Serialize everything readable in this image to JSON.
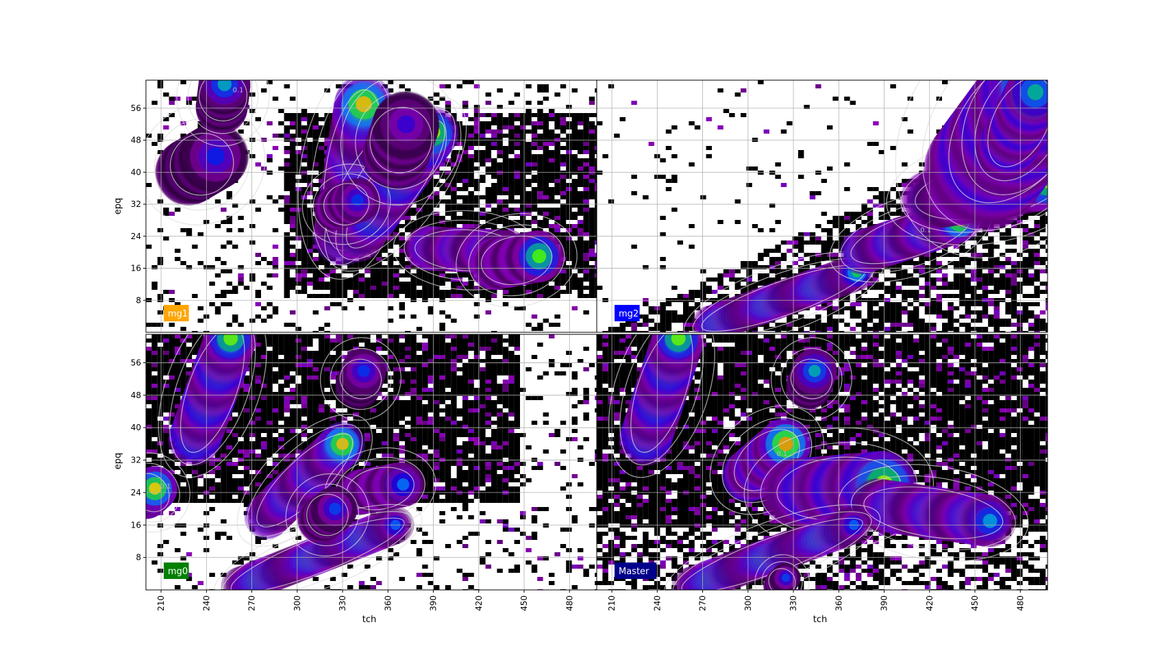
{
  "figure": {
    "xlabel": "tch",
    "ylabel": "epq"
  },
  "chart_data": [
    {
      "type": "heatmap",
      "panel_label": "mg1",
      "label_color": "#ffa500",
      "label_text_color": "#ffffff",
      "xlabel": "",
      "ylabel": "epq",
      "xlim": [
        200,
        498
      ],
      "ylim": [
        0,
        63
      ],
      "x_ticks": [
        210,
        240,
        270,
        300,
        330,
        360,
        390,
        420,
        450,
        480
      ],
      "y_ticks": [
        8,
        16,
        24,
        32,
        40,
        48,
        56
      ],
      "show_x_ticklabels": false,
      "show_y_ticklabels": true,
      "grid": true,
      "contour_label": "0.1",
      "ridges": [
        {
          "x": [
            228,
            246
          ],
          "y": [
            40,
            44
          ],
          "w": 4.5,
          "i": 0.5
        },
        {
          "x": [
            250,
            252
          ],
          "y": [
            56,
            62
          ],
          "w": 3.5,
          "i": 0.55
        },
        {
          "x": [
            330,
            344
          ],
          "y": [
            24,
            57
          ],
          "w": 4.0,
          "i": 0.9
        },
        {
          "x": [
            340,
            390
          ],
          "y": [
            24,
            50
          ],
          "w": 3.5,
          "i": 1.0
        },
        {
          "x": [
            325,
            340
          ],
          "y": [
            31,
            33
          ],
          "w": 3.0,
          "i": 0.7
        },
        {
          "x": [
            365,
            372
          ],
          "y": [
            44,
            52
          ],
          "w": 4.5,
          "i": 0.6
        },
        {
          "x": [
            385,
            440
          ],
          "y": [
            21,
            20
          ],
          "w": 3.0,
          "i": 0.85
        },
        {
          "x": [
            430,
            460
          ],
          "y": [
            17,
            19
          ],
          "w": 3.5,
          "i": 0.8
        }
      ]
    },
    {
      "type": "heatmap",
      "panel_label": "mg2",
      "label_color": "#0000ff",
      "label_text_color": "#ffffff",
      "xlabel": "",
      "ylabel": "",
      "xlim": [
        200,
        498
      ],
      "ylim": [
        0,
        63
      ],
      "x_ticks": [
        210,
        240,
        270,
        300,
        330,
        360,
        390,
        420,
        450,
        480
      ],
      "y_ticks": [
        8,
        16,
        24,
        32,
        40,
        48,
        56
      ],
      "show_x_ticklabels": false,
      "show_y_ticklabels": false,
      "grid": true,
      "contour_label": "0.1",
      "ridges": [
        {
          "x": [
            275,
            372
          ],
          "y": [
            2,
            15
          ],
          "w": 2.5,
          "i": 0.85
        },
        {
          "x": [
            375,
            440
          ],
          "y": [
            20,
            28
          ],
          "w": 3.0,
          "i": 0.9
        },
        {
          "x": [
            420,
            498
          ],
          "y": [
            33,
            38
          ],
          "w": 4.0,
          "i": 0.8
        },
        {
          "x": [
            455,
            498
          ],
          "y": [
            40,
            62
          ],
          "w": 8.0,
          "i": 1.0
        },
        {
          "x": [
            470,
            490
          ],
          "y": [
            45,
            60
          ],
          "w": 4.0,
          "i": 1.0
        }
      ]
    },
    {
      "type": "heatmap",
      "panel_label": "mg0",
      "label_color": "#008000",
      "label_text_color": "#ffffff",
      "xlabel": "tch",
      "ylabel": "epq",
      "xlim": [
        200,
        498
      ],
      "ylim": [
        0,
        63
      ],
      "x_ticks": [
        210,
        240,
        270,
        300,
        330,
        360,
        390,
        420,
        450,
        480
      ],
      "y_ticks": [
        8,
        16,
        24,
        32,
        40,
        48,
        56
      ],
      "show_x_ticklabels": true,
      "show_y_ticklabels": true,
      "grid": true,
      "contour_label": "0.1",
      "ridges": [
        {
          "x": [
            232,
            256
          ],
          "y": [
            37,
            62
          ],
          "w": 3.5,
          "i": 1.0
        },
        {
          "x": [
            200,
            206
          ],
          "y": [
            23,
            25
          ],
          "w": 3.0,
          "i": 0.9
        },
        {
          "x": [
            280,
            330
          ],
          "y": [
            18,
            36
          ],
          "w": 3.0,
          "i": 0.9
        },
        {
          "x": [
            340,
            344
          ],
          "y": [
            50,
            54
          ],
          "w": 3.0,
          "i": 0.5
        },
        {
          "x": [
            340,
            370
          ],
          "y": [
            24,
            26
          ],
          "w": 3.0,
          "i": 0.8
        },
        {
          "x": [
            262,
            365
          ],
          "y": [
            1,
            16
          ],
          "w": 2.5,
          "i": 0.85
        },
        {
          "x": [
            315,
            325
          ],
          "y": [
            17,
            20
          ],
          "w": 3.0,
          "i": 0.6
        }
      ]
    },
    {
      "type": "heatmap",
      "panel_label": "Master",
      "label_color": "#00008b",
      "label_text_color": "#ffffff",
      "xlabel": "tch",
      "ylabel": "",
      "xlim": [
        200,
        498
      ],
      "ylim": [
        0,
        63
      ],
      "x_ticks": [
        210,
        240,
        270,
        300,
        330,
        360,
        390,
        420,
        450,
        480
      ],
      "y_ticks": [
        8,
        16,
        24,
        32,
        40,
        48,
        56
      ],
      "show_x_ticklabels": true,
      "show_y_ticklabels": false,
      "grid": true,
      "contour_label": "0.1",
      "ridges": [
        {
          "x": [
            232,
            254
          ],
          "y": [
            37,
            62
          ],
          "w": 3.5,
          "i": 1.0
        },
        {
          "x": [
            300,
            325
          ],
          "y": [
            28,
            36
          ],
          "w": 3.5,
          "i": 0.95
        },
        {
          "x": [
            340,
            344
          ],
          "y": [
            50,
            54
          ],
          "w": 3.0,
          "i": 0.55
        },
        {
          "x": [
            330,
            390
          ],
          "y": [
            24,
            26
          ],
          "w": 4.5,
          "i": 1.0
        },
        {
          "x": [
            385,
            460
          ],
          "y": [
            21,
            17
          ],
          "w": 3.5,
          "i": 0.9
        },
        {
          "x": [
            262,
            370
          ],
          "y": [
            1,
            16
          ],
          "w": 2.5,
          "i": 0.85
        },
        {
          "x": [
            320,
            325
          ],
          "y": [
            1,
            3
          ],
          "w": 2.0,
          "i": 0.6
        }
      ]
    }
  ]
}
